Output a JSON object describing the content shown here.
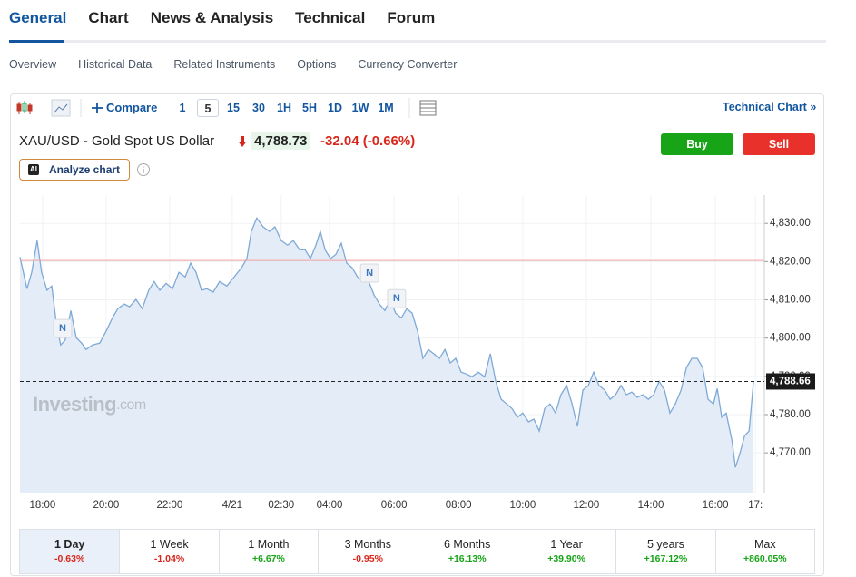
{
  "tabs": [
    "General",
    "Chart",
    "News & Analysis",
    "Technical",
    "Forum"
  ],
  "subtabs": [
    "Overview",
    "Historical Data",
    "Related Instruments",
    "Options",
    "Currency Converter"
  ],
  "toolbar": {
    "compare": "Compare",
    "intervals": [
      "1",
      "5",
      "15",
      "30",
      "1H",
      "5H",
      "1D",
      "1W",
      "1M"
    ],
    "technical_chart": "Technical Chart »"
  },
  "quote": {
    "name": "XAU/USD - Gold Spot US Dollar",
    "price": "4,788.73",
    "change": "-32.04",
    "change_pct": "(-0.66%)"
  },
  "buttons": {
    "buy": "Buy",
    "sell": "Sell",
    "ai": "AI",
    "analyze": "Analyze chart"
  },
  "chart_data": {
    "type": "area",
    "color": "#7fa9d6",
    "fill_color": "#e4edf7",
    "x": [
      -0.71,
      -0.49,
      -0.34,
      -0.17,
      -0.03,
      0.14,
      0.29,
      0.43,
      0.57,
      0.71,
      0.89,
      1.06,
      1.23,
      1.37,
      1.57,
      1.8,
      2,
      2.2,
      2.37,
      2.57,
      2.74,
      2.94,
      3.14,
      3.34,
      3.51,
      3.69,
      3.89,
      4.09,
      4.29,
      4.49,
      4.66,
      4.83,
      5,
      5.17,
      5.37,
      5.57,
      5.8,
      6.03,
      6.26,
      6.43,
      6.57,
      6.74,
      6.94,
      7.14,
      7.31,
      7.51,
      7.71,
      7.89,
      8.09,
      8.26,
      8.43,
      8.6,
      8.74,
      8.89,
      9.06,
      9.23,
      9.4,
      9.57,
      9.74,
      9.91,
      10.09,
      10.26,
      10.43,
      10.6,
      10.77,
      10.94,
      11.11,
      11.29,
      11.46,
      11.63,
      11.8,
      11.97,
      12.14,
      12.31,
      12.49,
      12.66,
      12.83,
      13,
      13.17,
      13.34,
      13.51,
      13.71,
      13.91,
      14.09,
      14.26,
      14.43,
      14.6,
      14.77,
      14.94,
      15.11,
      15.29,
      15.46,
      15.63,
      15.8,
      15.97,
      16.14,
      16.31,
      16.49,
      16.66,
      16.83,
      17,
      17.17,
      17.34,
      17.51,
      17.69,
      17.86,
      18.03,
      18.2,
      18.37,
      18.54,
      18.71,
      18.89,
      19.06,
      19.23,
      19.4,
      19.57,
      19.74,
      19.91,
      20.09,
      20.26,
      20.43,
      20.6,
      20.77,
      20.94,
      21.11,
      21.23,
      21.37,
      21.51,
      21.69,
      21.8,
      21.94,
      22.09,
      22.23,
      22.37
    ],
    "values": [
      4821.2,
      4812.9,
      4817.2,
      4825.5,
      4817.2,
      4812.5,
      4813.6,
      4804.2,
      4798.2,
      4799.4,
      4807.2,
      4800.1,
      4798.7,
      4797.0,
      4798.2,
      4798.7,
      4801.8,
      4805.3,
      4807.7,
      4808.9,
      4808.2,
      4810.1,
      4807.7,
      4812.5,
      4814.8,
      4812.5,
      4814.3,
      4812.9,
      4817.2,
      4816.0,
      4819.6,
      4817.2,
      4812.5,
      4812.9,
      4812.0,
      4814.8,
      4813.6,
      4816.0,
      4818.4,
      4820.8,
      4827.9,
      4831.4,
      4829.1,
      4827.9,
      4829.1,
      4825.5,
      4824.3,
      4825.5,
      4823.1,
      4823.1,
      4820.8,
      4824.3,
      4827.9,
      4823.1,
      4820.8,
      4821.9,
      4824.8,
      4819.6,
      4818.4,
      4816.0,
      4814.8,
      4814.8,
      4811.3,
      4808.9,
      4807.2,
      4810.1,
      4806.5,
      4805.3,
      4807.7,
      4806.5,
      4801.8,
      4794.7,
      4797.0,
      4795.9,
      4794.7,
      4797.0,
      4793.5,
      4794.7,
      4791.1,
      4790.6,
      4789.9,
      4791.1,
      4789.9,
      4795.9,
      4788.7,
      4784.0,
      4782.8,
      4781.6,
      4779.3,
      4780.4,
      4778.1,
      4778.8,
      4775.7,
      4781.6,
      4782.8,
      4780.4,
      4785.2,
      4787.6,
      4782.8,
      4776.9,
      4786.4,
      4787.6,
      4791.1,
      4787.6,
      4786.4,
      4784.0,
      4785.2,
      4787.6,
      4785.2,
      4785.9,
      4784.5,
      4785.2,
      4784.0,
      4785.2,
      4788.7,
      4786.4,
      4780.4,
      4782.8,
      4786.4,
      4792.3,
      4794.7,
      4794.7,
      4792.3,
      4784.0,
      4782.8,
      4786.8,
      4779.3,
      4780.4,
      4773.3,
      4766.2,
      4769.8,
      4774.5,
      4775.7,
      4788.7
    ],
    "xlim": [
      -0.71,
      22.71
    ],
    "ylim": [
      4759.6,
      4837.4
    ],
    "xticks": [
      {
        "value": 0,
        "label": "18:00"
      },
      {
        "value": 2,
        "label": "20:00"
      },
      {
        "value": 4,
        "label": "22:00"
      },
      {
        "value": 5.97,
        "label": "4/21"
      },
      {
        "value": 7.51,
        "label": "02:30"
      },
      {
        "value": 9.03,
        "label": "04:00"
      },
      {
        "value": 11.06,
        "label": "06:00"
      },
      {
        "value": 13.09,
        "label": "08:00"
      },
      {
        "value": 15.11,
        "label": "10:00"
      },
      {
        "value": 17.11,
        "label": "12:00"
      },
      {
        "value": 19.14,
        "label": "14:00"
      },
      {
        "value": 21.17,
        "label": "16:00"
      },
      {
        "value": 22.43,
        "label": "17:"
      }
    ],
    "yticks": [
      {
        "value": 4770,
        "label": "4,770.00"
      },
      {
        "value": 4780,
        "label": "4,780.00"
      },
      {
        "value": 4790,
        "label": "4,790.00"
      },
      {
        "value": 4800,
        "label": "4,800.00"
      },
      {
        "value": 4810,
        "label": "4,810.00"
      },
      {
        "value": 4820,
        "label": "4,820.00"
      },
      {
        "value": 4830,
        "label": "4,830.00"
      }
    ],
    "grid": true,
    "last_value": {
      "value": 4788.66,
      "label": "4,788.66"
    },
    "reference_line": 4820.3,
    "reference_color": "#f2a0a0",
    "news_markers": [
      {
        "x": 0.63,
        "y": 4802.5,
        "label": "N"
      },
      {
        "x": 10.29,
        "y": 4817.0,
        "label": "N"
      },
      {
        "x": 11.14,
        "y": 4810.3,
        "label": "N"
      }
    ],
    "watermark": "Investing",
    "watermark_suffix": ".com"
  },
  "periods": [
    {
      "label": "1 Day",
      "change": "-0.63%"
    },
    {
      "label": "1 Week",
      "change": "-1.04%"
    },
    {
      "label": "1 Month",
      "change": "+6.67%"
    },
    {
      "label": "3 Months",
      "change": "-0.95%"
    },
    {
      "label": "6 Months",
      "change": "+16.13%"
    },
    {
      "label": "1 Year",
      "change": "+39.90%"
    },
    {
      "label": "5 years",
      "change": "+167.12%"
    },
    {
      "label": "Max",
      "change": "+860.05%"
    }
  ]
}
